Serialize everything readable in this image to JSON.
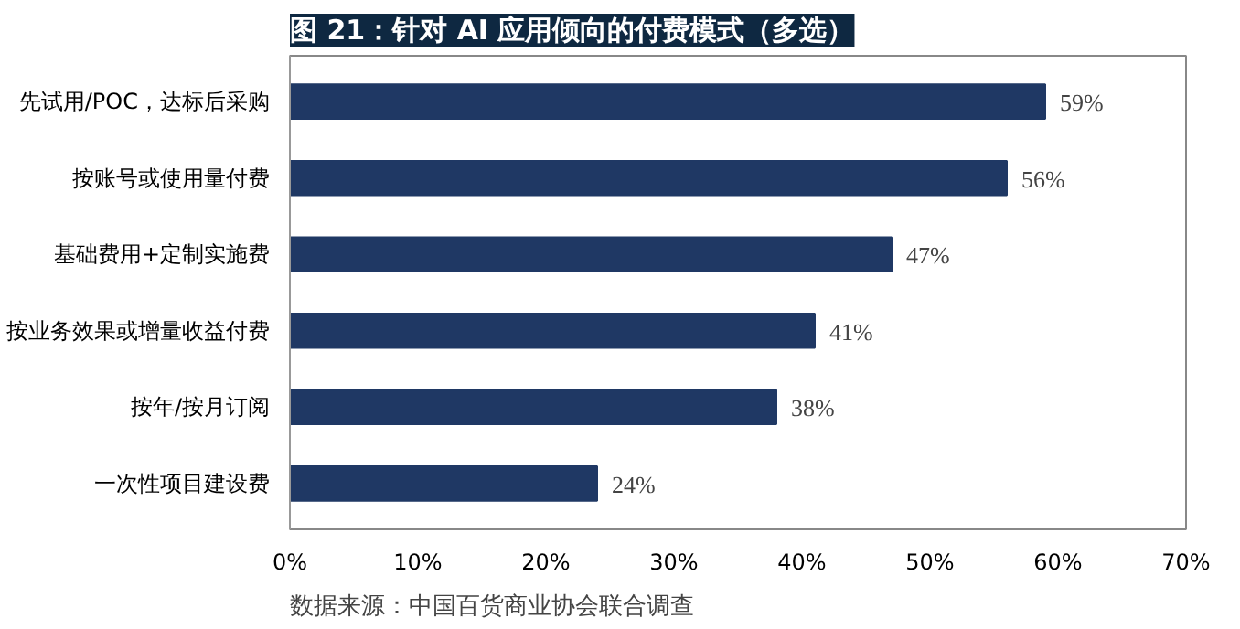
{
  "chart_data": {
    "type": "bar",
    "orientation": "horizontal",
    "title": "图 21：针对 AI 应用倾向的付费模式（多选）",
    "categories": [
      "先试用/POC，达标后采购",
      "按账号或使用量付费",
      "基础费用+定制实施费",
      "按业务效果或增量收益付费",
      "按年/按月订阅",
      "一次性项目建设费"
    ],
    "values": [
      59,
      56,
      47,
      41,
      38,
      24
    ],
    "value_labels": [
      "59%",
      "56%",
      "47%",
      "41%",
      "38%",
      "24%"
    ],
    "color": "#1f3864",
    "xlim": [
      0,
      70
    ],
    "xticks": [
      {
        "value": 0,
        "label": "0%"
      },
      {
        "value": 10,
        "label": "10%"
      },
      {
        "value": 20,
        "label": "20%"
      },
      {
        "value": 30,
        "label": "30%"
      },
      {
        "value": 40,
        "label": "40%"
      },
      {
        "value": 50,
        "label": "50%"
      },
      {
        "value": 60,
        "label": "60%"
      },
      {
        "value": 70,
        "label": "70%"
      }
    ],
    "grid": false,
    "annotations": [
      "数据来源：中国百货商业协会联合调查"
    ]
  }
}
